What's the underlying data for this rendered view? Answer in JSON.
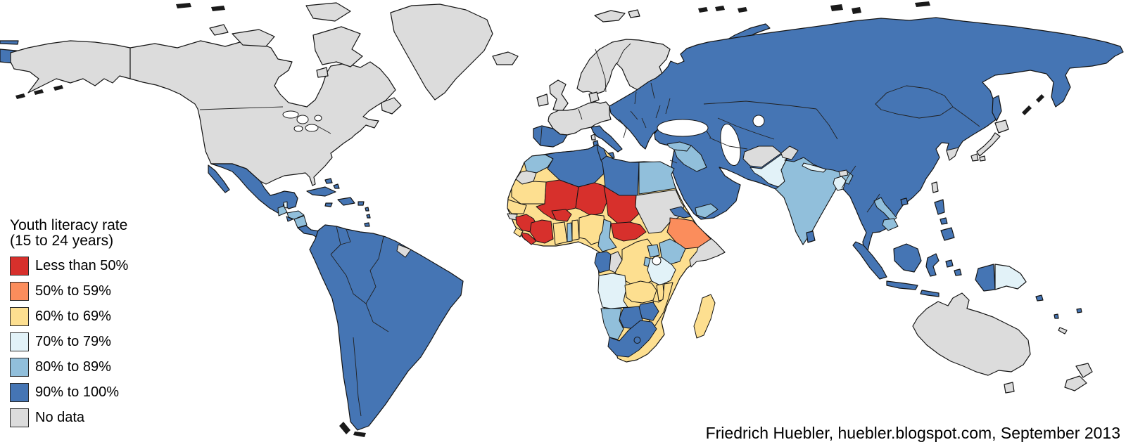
{
  "legend": {
    "title_line1": "Youth literacy rate",
    "title_line2": "(15 to 24 years)",
    "entries": [
      {
        "label": "Less than 50%",
        "category": "lt50"
      },
      {
        "label": "50% to 59%",
        "category": "50to59"
      },
      {
        "label": "60% to 69%",
        "category": "60to69"
      },
      {
        "label": "70% to 79%",
        "category": "70to79"
      },
      {
        "label": "80% to 89%",
        "category": "80to89"
      },
      {
        "label": "90% to 100%",
        "category": "90to100"
      },
      {
        "label": "No data",
        "category": "no_data"
      }
    ]
  },
  "attribution": {
    "text": "Friedrich Huebler, huebler.blogspot.com, September 2013"
  },
  "colors": {
    "lt50": "#d7302c",
    "50to59": "#fb8d5c",
    "60to69": "#fddf90",
    "70to79": "#e2f2f8",
    "80to89": "#91bfdb",
    "90to100": "#4575b4",
    "no_data": "#dcdcdc",
    "border": "#141414",
    "ocean": "#ffffff",
    "coast": "#1a1a1a",
    "text": "#000000"
  },
  "regions": {
    "chukotka": "90to100",
    "chukotka-dash": "90to100",
    "alaska": "no_data",
    "canada-usa": "no_data",
    "newfoundland": "no_data",
    "ellesmere": "no_data",
    "baffin": "no_data",
    "victoria-island": "no_data",
    "banks-island": "no_data",
    "southampton": "no_data",
    "greenland": "no_data",
    "iceland": "no_data",
    "svalbard": "no_data",
    "novaya-zemlya": "90to100",
    "mexico": "90to100",
    "baja-california": "90to100",
    "guatemala": "80to89",
    "belize": "70to79",
    "honduras": "80to89",
    "el-salvador": "90to100",
    "nicaragua": "80to89",
    "costa-rica-panama": "90to100",
    "cuba": "90to100",
    "hispaniola": "90to100",
    "jamaica": "90to100",
    "puerto-rico": "90to100",
    "bahamas": "90to100",
    "lesser-antilles": "90to100",
    "south-america": "90to100",
    "french-guiana": "no_data",
    "scandinavia": "no_data",
    "denmark": "no_data",
    "uk": "no_data",
    "ireland": "no_data",
    "west-europe": "no_data",
    "corsica": "no_data",
    "iberia": "90to100",
    "italy": "90to100",
    "sicily": "90to100",
    "sardinia": "90to100",
    "eurasia": "90to100",
    "syria": "80to89",
    "iraq": "80to89",
    "yemen": "80to89",
    "afghanistan": "no_data",
    "pakistan": "70to79",
    "kashmir": "no_data",
    "india": "80to89",
    "nepal": "70to79",
    "bhutan": "no_data",
    "bangladesh": "70to79",
    "laos": "80to89",
    "cambodia": "80to89",
    "south-korea": "no_data",
    "sakhalin": "90to100",
    "japan": "no_data",
    "taiwan": "no_data",
    "hainan": "90to100",
    "sri-lanka": "90to100",
    "philippines": "90to100",
    "indonesia": "90to100",
    "papua-new-guinea": "70to79",
    "australia": "no_data",
    "tasmania": "no_data",
    "new-zealand": "no_data",
    "new-caledonia": "no_data",
    "fiji": "90to100",
    "solomon-islands": "90to100",
    "vanuatu": "90to100",
    "africa-base": "60to69",
    "morocco": "80to89",
    "western-sahara": "no_data",
    "algeria": "90to100",
    "tunisia": "90to100",
    "libya": "90to100",
    "egypt": "80to89",
    "mauritania": "60to69",
    "mali": "lt50",
    "niger": "lt50",
    "chad": "lt50",
    "sudan": "no_data",
    "senegal-gambia": "60to69",
    "guinea-bissau": "no_data",
    "guinea": "lt50",
    "sierra-leone": "60to69",
    "liberia": "lt50",
    "cote-divoire": "lt50",
    "burkina-faso": "lt50",
    "ghana": "60to69",
    "togo": "80to89",
    "benin": "60to69",
    "nigeria": "60to69",
    "cameroon": "80to89",
    "central-african-republic": "lt50",
    "eritrea": "90to100",
    "ethiopia": "50to59",
    "somalia": "no_data",
    "gabon-eq-guinea": "90to100",
    "congo": "no_data",
    "dr-congo": "60to69",
    "uganda": "80to89",
    "kenya": "80to89",
    "rwanda-burundi": "80to89",
    "tanzania": "70to79",
    "angola": "70to79",
    "zambia": "60to69",
    "malawi": "60to69",
    "mozambique": "60to69",
    "zimbabwe": "90to100",
    "botswana": "90to100",
    "namibia": "80to89",
    "south-africa": "90to100",
    "lesotho": "90to100",
    "madagascar": "60to69",
    "arctic-islets": "coast",
    "aleutians": "coast",
    "patagonia-fjords": "coast",
    "kurils": "coast"
  }
}
